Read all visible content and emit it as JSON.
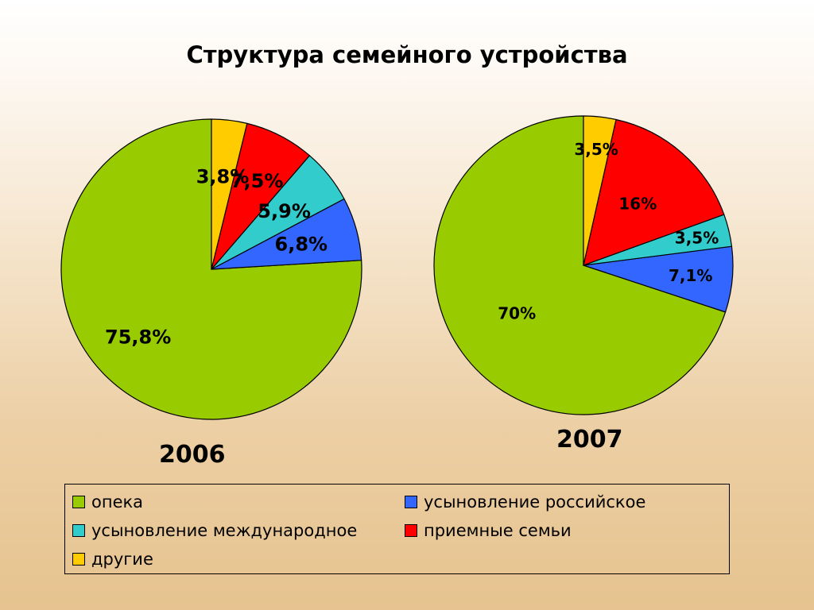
{
  "title": "Структура семейного устройства",
  "colors": {
    "opeka": "#99cc00",
    "rus": "#3366ff",
    "intl": "#33cccc",
    "foster": "#ff0000",
    "other": "#ffcc00",
    "outline": "#000000"
  },
  "chart_data": [
    {
      "type": "pie",
      "title": "2006",
      "start_angle_deg": 0,
      "direction": "counterclockwise",
      "categories": [
        "опека",
        "усыновление российское",
        "усыновление международное",
        "приемные семьи",
        "другие"
      ],
      "values": [
        75.8,
        6.8,
        5.9,
        7.5,
        3.8
      ],
      "labels": [
        "75,8%",
        "6,8%",
        "5,9%",
        "7,5%",
        "3,8%"
      ],
      "color_keys": [
        "opeka",
        "rus",
        "intl",
        "foster",
        "other"
      ]
    },
    {
      "type": "pie",
      "title": "2007",
      "start_angle_deg": 0,
      "direction": "counterclockwise",
      "categories": [
        "опека",
        "усыновление российское",
        "усыновление международное",
        "приемные семьи",
        "другие"
      ],
      "values": [
        70,
        7.1,
        3.5,
        16,
        3.5
      ],
      "labels": [
        "70%",
        "7,1%",
        "3,5%",
        "16%",
        "3,5%"
      ],
      "color_keys": [
        "opeka",
        "rus",
        "intl",
        "foster",
        "other"
      ]
    }
  ],
  "legend": [
    {
      "label": "опека",
      "color_key": "opeka"
    },
    {
      "label": "усыновление российское",
      "color_key": "rus"
    },
    {
      "label": "усыновление международное",
      "color_key": "intl"
    },
    {
      "label": "приемные семьи",
      "color_key": "foster"
    },
    {
      "label": "другие",
      "color_key": "other"
    }
  ]
}
